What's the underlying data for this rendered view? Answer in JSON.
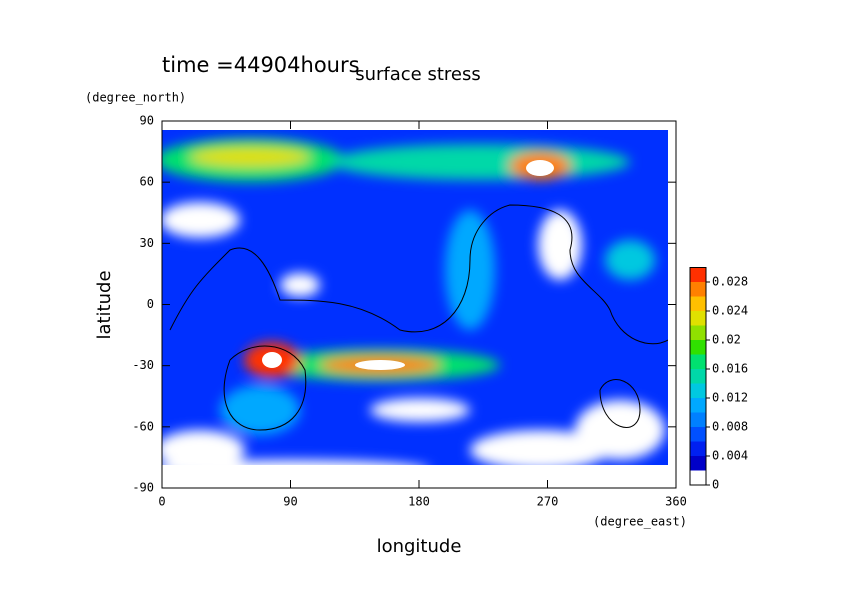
{
  "chart_data": {
    "type": "contour",
    "time_label": "time =44904hours",
    "title": "surface stress",
    "x_label": "longitude",
    "x_unit": "(degree_east)",
    "y_label": "latitude",
    "y_unit": "(degree_north)",
    "xlim": [
      0,
      360
    ],
    "xticks": [
      0,
      90,
      180,
      270,
      360
    ],
    "ylim": [
      -90,
      90
    ],
    "yticks": [
      90,
      60,
      30,
      0,
      -30,
      -60,
      -90
    ],
    "clim": [
      0,
      0.03
    ],
    "cticks": [
      0,
      0.004,
      0.008,
      0.012,
      0.016,
      0.02,
      0.024,
      0.028
    ],
    "colors": [
      "#ffffff",
      "#0000c8",
      "#0020f0",
      "#0050ff",
      "#0080ff",
      "#00a8ff",
      "#00c8e0",
      "#00d8a8",
      "#00e070",
      "#30e000",
      "#90e000",
      "#e0e000",
      "#ffc000",
      "#ff8000",
      "#ff3000"
    ]
  }
}
